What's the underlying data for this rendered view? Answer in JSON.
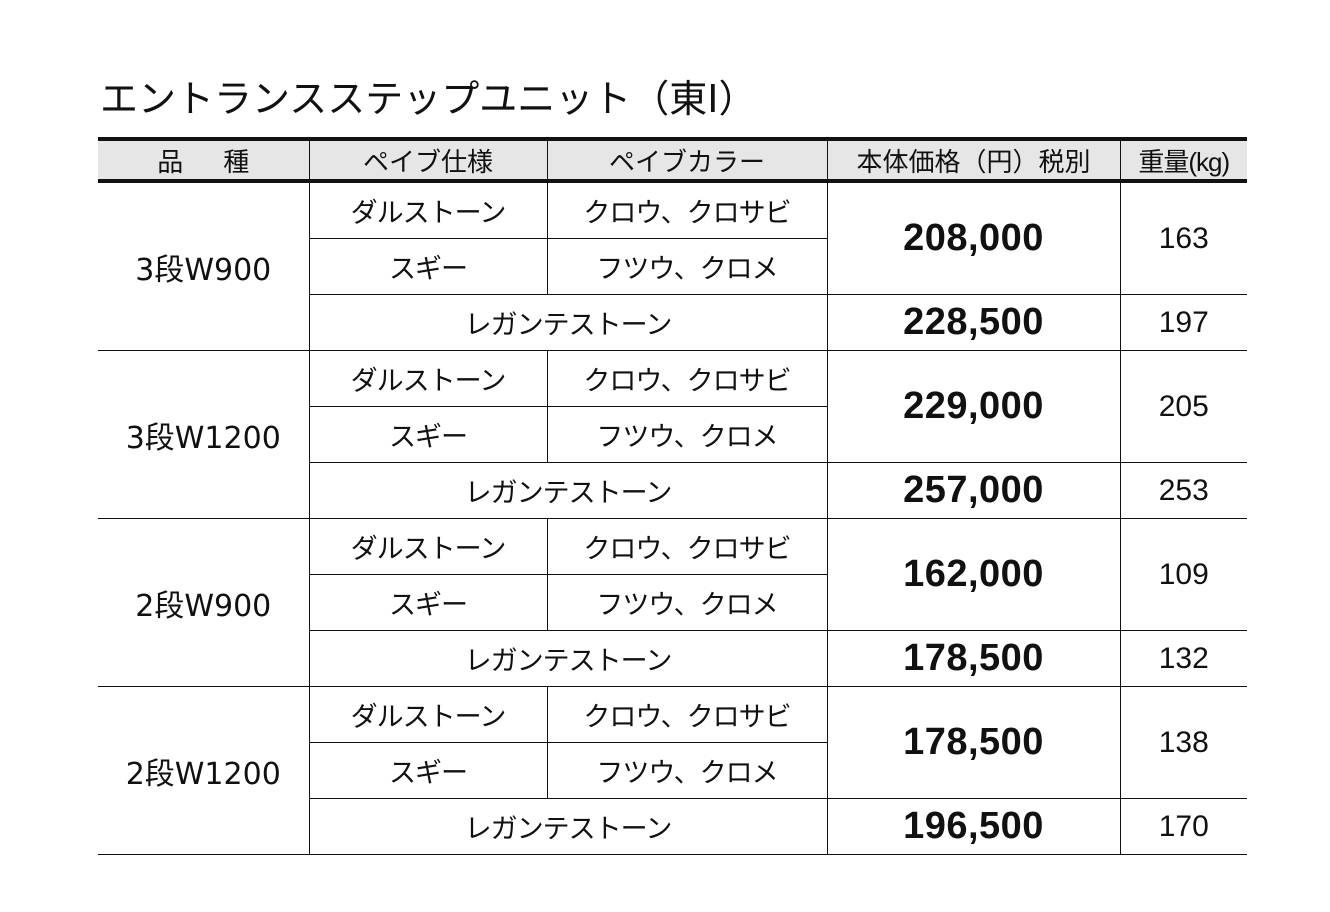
{
  "title": "エントランスステップユニット（東Ⅰ）",
  "table": {
    "headers": {
      "variety": "品種",
      "pipe_spec": "ペイブ仕様",
      "pipe_color": "ペイブカラー",
      "price": "本体価格（円）税別",
      "weight": "重量(kg)"
    },
    "groups": [
      {
        "variety": "3段W900",
        "rows": [
          {
            "spec": "ダルストーン",
            "color": "クロウ、クロサビ"
          },
          {
            "spec": "スギー",
            "color": "フツウ、クロメ"
          }
        ],
        "price_a": "208,000",
        "weight_a": "163",
        "combined_spec": "レガンテストーン",
        "price_b": "228,500",
        "weight_b": "197"
      },
      {
        "variety": "3段W1200",
        "rows": [
          {
            "spec": "ダルストーン",
            "color": "クロウ、クロサビ"
          },
          {
            "spec": "スギー",
            "color": "フツウ、クロメ"
          }
        ],
        "price_a": "229,000",
        "weight_a": "205",
        "combined_spec": "レガンテストーン",
        "price_b": "257,000",
        "weight_b": "253"
      },
      {
        "variety": "2段W900",
        "rows": [
          {
            "spec": "ダルストーン",
            "color": "クロウ、クロサビ"
          },
          {
            "spec": "スギー",
            "color": "フツウ、クロメ"
          }
        ],
        "price_a": "162,000",
        "weight_a": "109",
        "combined_spec": "レガンテストーン",
        "price_b": "178,500",
        "weight_b": "132"
      },
      {
        "variety": "2段W1200",
        "rows": [
          {
            "spec": "ダルストーン",
            "color": "クロウ、クロサビ"
          },
          {
            "spec": "スギー",
            "color": "フツウ、クロメ"
          }
        ],
        "price_a": "178,500",
        "weight_a": "138",
        "combined_spec": "レガンテストーン",
        "price_b": "196,500",
        "weight_b": "170"
      }
    ]
  },
  "colors": {
    "header_bg": "#e6e6e6",
    "border": "#111111",
    "text": "#111111"
  }
}
